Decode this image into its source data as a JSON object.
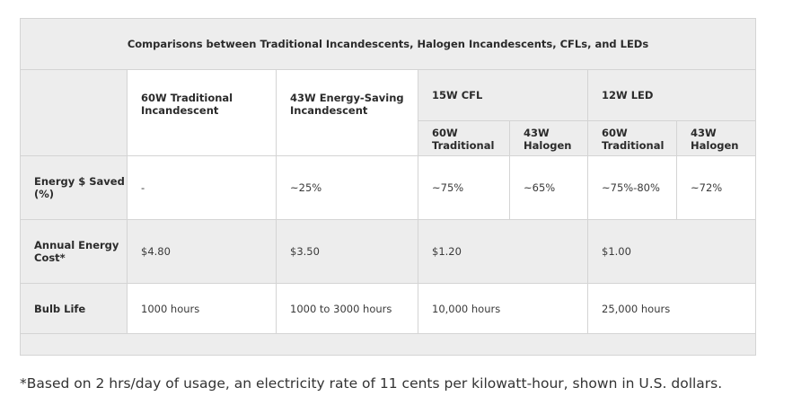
{
  "table": {
    "title": "Comparisons between Traditional Incandescents, Halogen Incandescents, CFLs, and LEDs",
    "headers": {
      "col1": "60W Traditional Incandescent",
      "col2": "43W Energy-Saving Incandescent",
      "col3": "15W CFL",
      "col4": "12W LED",
      "sub3a": "60W Traditional",
      "sub3b": "43W Halogen",
      "sub4a": "60W Traditional",
      "sub4b": "43W Halogen"
    },
    "rows": [
      {
        "label": "Energy $ Saved (%)",
        "c1": "-",
        "c2": "~25%",
        "c3a": "~75%",
        "c3b": "~65%",
        "c4a": "~75%-80%",
        "c4b": "~72%"
      },
      {
        "label": "Annual Energy Cost*",
        "c1": "$4.80",
        "c2": "$3.50",
        "c3": "$1.20",
        "c4": "$1.00"
      },
      {
        "label": "Bulb Life",
        "c1": "1000 hours",
        "c2": "1000 to 3000 hours",
        "c3": "10,000 hours",
        "c4": "25,000 hours"
      }
    ]
  },
  "footnote": "*Based on 2 hrs/day of usage, an electricity rate of 11 cents per kilowatt-hour, shown in U.S. dollars."
}
